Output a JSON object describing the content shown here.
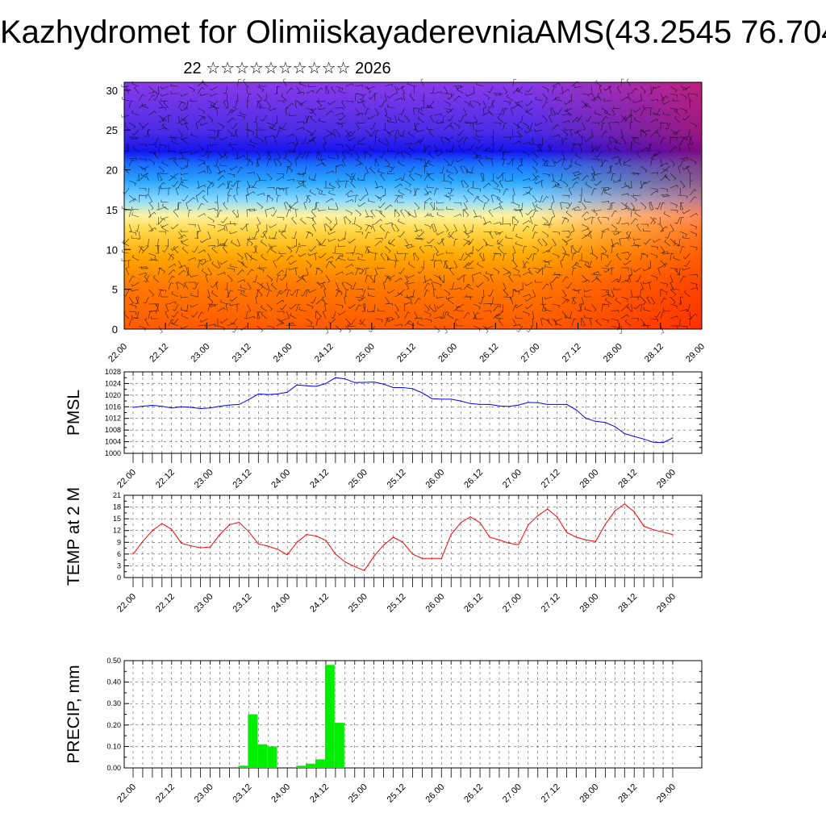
{
  "page": {
    "title": "Kazhydromet for OlimiiskayaderevniaAMS(43.2545 76.704",
    "subtitle": "22 ☆☆☆☆☆☆☆☆☆☆ 2026"
  },
  "colors": {
    "pmsl_line": "#0000ff",
    "temp_line": "#ff0000",
    "precip_bar": "#00ee00",
    "axis": "#000000"
  },
  "chart_data": [
    {
      "type": "heatmap",
      "name_key": "wind-profile",
      "x_ticks": [
        "22.00",
        "22.12",
        "23.00",
        "23.12",
        "24.00",
        "24.12",
        "25.00",
        "25.12",
        "26.00",
        "26.12",
        "27.00",
        "27.12",
        "28.00",
        "28.12",
        "29.00"
      ],
      "y_ticks": [
        "0",
        "5",
        "10",
        "15",
        "20",
        "25",
        "30"
      ],
      "ylim": [
        0,
        31
      ],
      "colormap": [
        "#ff2a00",
        "#ff6a00",
        "#ffa200",
        "#ffe070",
        "#9ad8ff",
        "#1a8cff",
        "#1010ff",
        "#7b28e8"
      ]
    },
    {
      "type": "line",
      "ylabel": "PMSL",
      "ylim": [
        1000,
        1028
      ],
      "y_ticks": [
        "1000",
        "1004",
        "1008",
        "1012",
        "1016",
        "1020",
        "1024",
        "1028"
      ],
      "x_ticks": [
        "22.00",
        "22.12",
        "23.00",
        "23.12",
        "24.00",
        "24.12",
        "25.00",
        "25.12",
        "26.00",
        "26.12",
        "27.00",
        "27.12",
        "28.00",
        "28.12",
        "29.00"
      ],
      "values": [
        1015.8,
        1016.2,
        1016.5,
        1016.2,
        1015.6,
        1016.0,
        1015.8,
        1015.4,
        1015.6,
        1016.2,
        1016.6,
        1016.8,
        1018.5,
        1020.4,
        1020.2,
        1020.4,
        1021.0,
        1023.5,
        1023.2,
        1023.0,
        1024.0,
        1026.0,
        1025.6,
        1024.3,
        1024.4,
        1024.5,
        1023.8,
        1022.6,
        1022.6,
        1022.2,
        1020.8,
        1018.8,
        1018.6,
        1018.6,
        1018.0,
        1017.1,
        1016.8,
        1016.8,
        1016.3,
        1016.1,
        1016.6,
        1017.5,
        1017.4,
        1016.8,
        1016.8,
        1016.8,
        1014.9,
        1012.0,
        1011.0,
        1010.6,
        1009.2,
        1006.8,
        1005.8,
        1004.9,
        1003.8,
        1003.7,
        1005.3
      ]
    },
    {
      "type": "line",
      "ylabel": "TEMP at 2 M",
      "ylim": [
        0,
        21
      ],
      "y_ticks": [
        "0",
        "3",
        "6",
        "9",
        "12",
        "15",
        "18",
        "21"
      ],
      "x_ticks": [
        "22.00",
        "22.12",
        "23.00",
        "23.12",
        "24.00",
        "24.12",
        "25.00",
        "25.12",
        "26.00",
        "26.12",
        "27.00",
        "27.12",
        "28.00",
        "28.12",
        "29.00"
      ],
      "values": [
        6.0,
        9.2,
        12.0,
        13.8,
        12.3,
        8.8,
        8.1,
        7.6,
        7.8,
        11.0,
        13.5,
        14.1,
        11.7,
        8.6,
        8.0,
        7.2,
        5.8,
        9.0,
        11.0,
        10.6,
        9.5,
        6.0,
        4.0,
        2.8,
        1.8,
        5.5,
        8.3,
        10.3,
        9.0,
        6.0,
        4.9,
        4.9,
        4.9,
        11.0,
        14.0,
        15.5,
        14.0,
        10.3,
        9.6,
        8.8,
        8.4,
        13.4,
        15.8,
        17.5,
        15.5,
        11.5,
        10.3,
        9.6,
        9.2,
        13.6,
        17.0,
        18.8,
        16.8,
        13.1,
        12.2,
        11.6,
        11.0
      ]
    },
    {
      "type": "bar",
      "ylabel": "PRECIP, mm",
      "ylim": [
        0,
        0.5
      ],
      "y_ticks": [
        "0.00",
        "0.10",
        "0.20",
        "0.30",
        "0.40",
        "0.50"
      ],
      "x_ticks": [
        "22.00",
        "22.12",
        "23.00",
        "23.12",
        "24.00",
        "24.12",
        "25.00",
        "25.12",
        "26.00",
        "26.12",
        "27.00",
        "27.12",
        "28.00",
        "28.12",
        "29.00"
      ],
      "values": [
        0,
        0,
        0,
        0,
        0,
        0,
        0,
        0,
        0,
        0,
        0,
        0.01,
        0.25,
        0.11,
        0.1,
        0,
        0,
        0.01,
        0.02,
        0.04,
        0.48,
        0.21,
        0,
        0,
        0,
        0,
        0,
        0,
        0,
        0,
        0,
        0,
        0,
        0,
        0,
        0,
        0,
        0,
        0,
        0,
        0,
        0,
        0,
        0,
        0,
        0,
        0,
        0,
        0,
        0,
        0,
        0,
        0,
        0,
        0,
        0,
        0
      ]
    }
  ]
}
